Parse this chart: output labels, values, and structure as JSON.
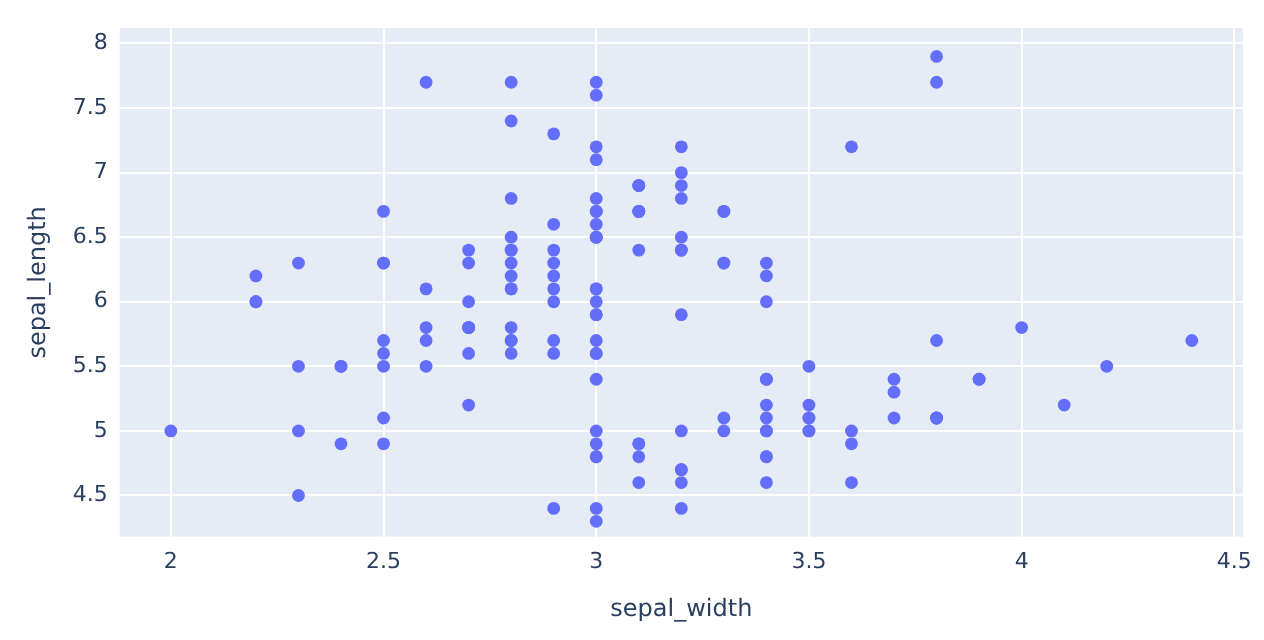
{
  "chart_data": {
    "type": "scatter",
    "xlabel": "sepal_width",
    "ylabel": "sepal_length",
    "x": [
      3.5,
      3.0,
      3.2,
      3.1,
      3.6,
      3.9,
      3.4,
      3.4,
      2.9,
      3.1,
      3.7,
      3.4,
      3.0,
      3.0,
      4.0,
      4.4,
      3.9,
      3.5,
      3.8,
      3.8,
      3.4,
      3.7,
      3.6,
      3.3,
      3.4,
      3.0,
      3.4,
      3.5,
      3.4,
      3.2,
      3.1,
      3.4,
      4.1,
      4.2,
      3.1,
      3.2,
      3.5,
      3.6,
      3.0,
      3.4,
      3.5,
      2.3,
      3.2,
      3.5,
      3.8,
      3.0,
      3.8,
      3.2,
      3.7,
      3.3,
      3.2,
      3.2,
      3.1,
      2.3,
      2.8,
      2.8,
      3.3,
      2.4,
      2.9,
      2.7,
      2.0,
      3.0,
      2.2,
      2.9,
      2.9,
      3.1,
      3.0,
      2.7,
      2.2,
      2.5,
      3.2,
      2.8,
      2.5,
      2.8,
      2.9,
      3.0,
      2.8,
      3.0,
      2.9,
      2.6,
      2.4,
      2.4,
      2.7,
      2.7,
      3.0,
      3.4,
      3.1,
      2.3,
      3.0,
      2.5,
      2.6,
      3.0,
      2.6,
      2.3,
      2.7,
      3.0,
      2.9,
      2.9,
      2.5,
      2.8,
      3.3,
      2.7,
      3.0,
      2.9,
      3.0,
      3.0,
      2.5,
      2.9,
      2.5,
      3.6,
      3.2,
      2.7,
      3.0,
      2.5,
      2.8,
      3.2,
      3.0,
      3.8,
      2.6,
      2.2,
      3.2,
      2.8,
      2.8,
      2.7,
      3.3,
      3.2,
      2.8,
      3.0,
      2.8,
      3.0,
      2.8,
      3.8,
      2.8,
      2.8,
      2.6,
      3.0,
      3.4,
      3.1,
      3.0,
      3.1,
      3.1,
      3.1,
      2.7,
      3.2,
      3.3,
      3.0,
      2.5,
      3.0,
      3.4,
      3.0
    ],
    "series": [
      {
        "color": "#636efa",
        "values": [
          5.1,
          4.9,
          4.7,
          4.6,
          5.0,
          5.4,
          4.6,
          5.0,
          4.4,
          4.9,
          5.4,
          4.8,
          4.8,
          4.3,
          5.8,
          5.7,
          5.4,
          5.1,
          5.7,
          5.1,
          5.4,
          5.1,
          4.6,
          5.1,
          4.8,
          5.0,
          5.0,
          5.2,
          5.2,
          4.7,
          4.8,
          5.4,
          5.2,
          5.5,
          4.9,
          5.0,
          5.5,
          4.9,
          4.4,
          5.1,
          5.0,
          4.5,
          4.4,
          5.0,
          5.1,
          4.8,
          5.1,
          4.6,
          5.3,
          5.0,
          7.0,
          6.4,
          6.9,
          5.5,
          6.5,
          5.7,
          6.3,
          4.9,
          6.6,
          5.2,
          5.0,
          5.9,
          6.0,
          6.1,
          5.6,
          6.7,
          5.6,
          5.8,
          6.2,
          5.6,
          5.9,
          6.1,
          6.3,
          6.1,
          6.4,
          6.6,
          6.8,
          6.7,
          6.0,
          5.7,
          5.5,
          5.5,
          5.8,
          6.0,
          5.4,
          6.0,
          6.7,
          6.3,
          5.6,
          5.5,
          5.5,
          6.1,
          5.8,
          5.0,
          5.6,
          5.7,
          5.7,
          6.2,
          5.1,
          5.7,
          6.3,
          5.8,
          7.1,
          6.3,
          6.5,
          7.6,
          4.9,
          7.3,
          6.7,
          7.2,
          6.5,
          6.4,
          6.8,
          5.7,
          5.8,
          6.4,
          6.5,
          7.7,
          7.7,
          6.0,
          6.9,
          5.6,
          7.7,
          6.3,
          6.7,
          7.2,
          6.2,
          6.1,
          6.4,
          7.2,
          7.4,
          7.9,
          6.4,
          6.3,
          6.1,
          7.7,
          6.3,
          6.4,
          6.0,
          6.9,
          6.7,
          6.9,
          5.8,
          6.8,
          6.7,
          6.7,
          6.3,
          6.5,
          6.2,
          5.9
        ]
      }
    ],
    "xlim": [
      1.88,
      4.52
    ],
    "ylim": [
      4.18,
      8.12
    ],
    "xticks": [
      2,
      2.5,
      3,
      3.5,
      4,
      4.5
    ],
    "yticks": [
      4.5,
      5,
      5.5,
      6,
      6.5,
      7,
      7.5,
      8
    ],
    "grid": true,
    "marker": "circle"
  }
}
